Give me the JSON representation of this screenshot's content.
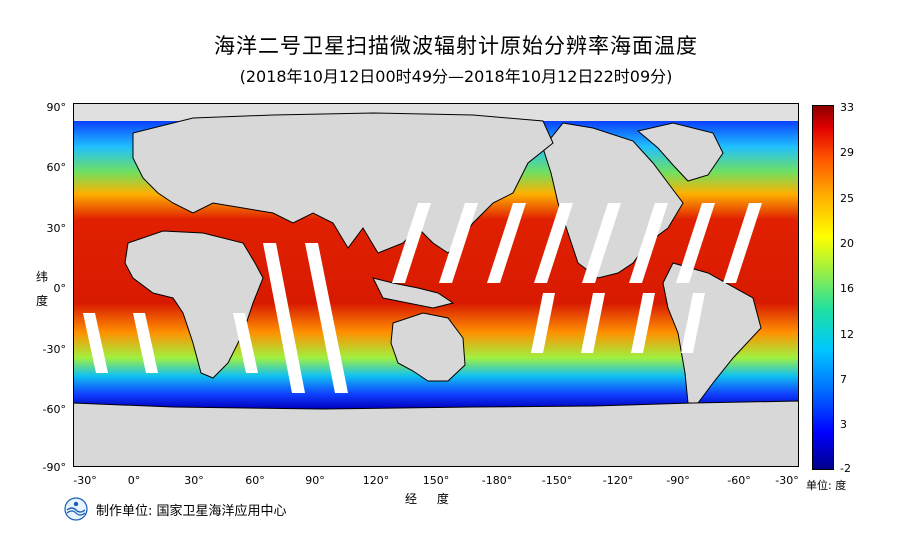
{
  "title": "海洋二号卫星扫描微波辐射计原始分辨率海面温度",
  "subtitle": "(2018年10月12日00时49分—2018年10月12日22时09分)",
  "axes": {
    "y_ticks": [
      "90°",
      "60°",
      "30°",
      "0°",
      "-30°",
      "-60°",
      "-90°"
    ],
    "x_ticks": [
      "-30°",
      "0°",
      "30°",
      "60°",
      "90°",
      "120°",
      "150°",
      "-180°",
      "-150°",
      "-120°",
      "-90°",
      "-60°",
      "-30°"
    ],
    "y_title_1": "纬",
    "y_title_2": "度",
    "x_title": "经 度"
  },
  "colorbar": {
    "ticks": [
      "33",
      "29",
      "25",
      "20",
      "16",
      "12",
      "7",
      "3",
      "-2"
    ],
    "unit": "单位: 度"
  },
  "footer": {
    "text": "制作单位: 国家卫星海洋应用中心"
  }
}
